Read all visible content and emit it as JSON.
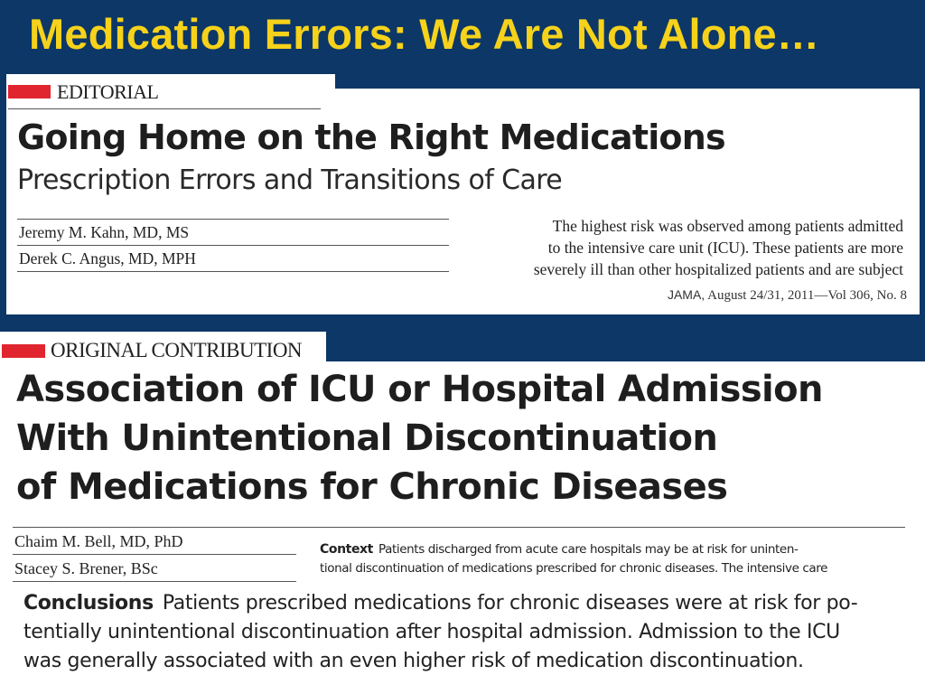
{
  "slide": {
    "title": "Medication Errors: We Are Not Alone…",
    "colors": {
      "background": "#0c3766",
      "title": "#f6d21b",
      "section_marker": "#e0252f"
    }
  },
  "editorial": {
    "section_label": "EDITORIAL",
    "title": "Going Home on the Right Medications",
    "subtitle": "Prescription Errors and Transitions of Care",
    "authors": [
      "Jeremy M. Kahn, MD, MS",
      "Derek C. Angus, MD, MPH"
    ],
    "excerpt_lines": [
      "The highest risk was observed among patients admitted",
      "to the intensive care unit (ICU). These patients are more",
      "severely ill than other hospitalized patients and are subject"
    ],
    "citation": {
      "journal": "JAMA,",
      "details": "August 24/31, 2011—Vol 306, No. 8"
    }
  },
  "original": {
    "section_label": "ORIGINAL CONTRIBUTION",
    "title_lines": [
      "Association of ICU or Hospital Admission",
      "With Unintentional Discontinuation",
      "of Medications for Chronic Diseases"
    ],
    "authors": [
      "Chaim M. Bell, MD, PhD",
      "Stacey S. Brener, BSc"
    ],
    "context": {
      "heading": "Context",
      "lines": [
        "Patients discharged from acute care hospitals may be at risk for uninten-",
        "tional discontinuation of medications prescribed for chronic diseases. The intensive care"
      ]
    },
    "conclusions": {
      "heading": "Conclusions",
      "lines": [
        "Patients prescribed medications for chronic diseases were at risk for po-",
        "tentially unintentional discontinuation after hospital admission. Admission to the ICU",
        "was generally associated with an even higher risk of medication discontinuation."
      ]
    }
  }
}
